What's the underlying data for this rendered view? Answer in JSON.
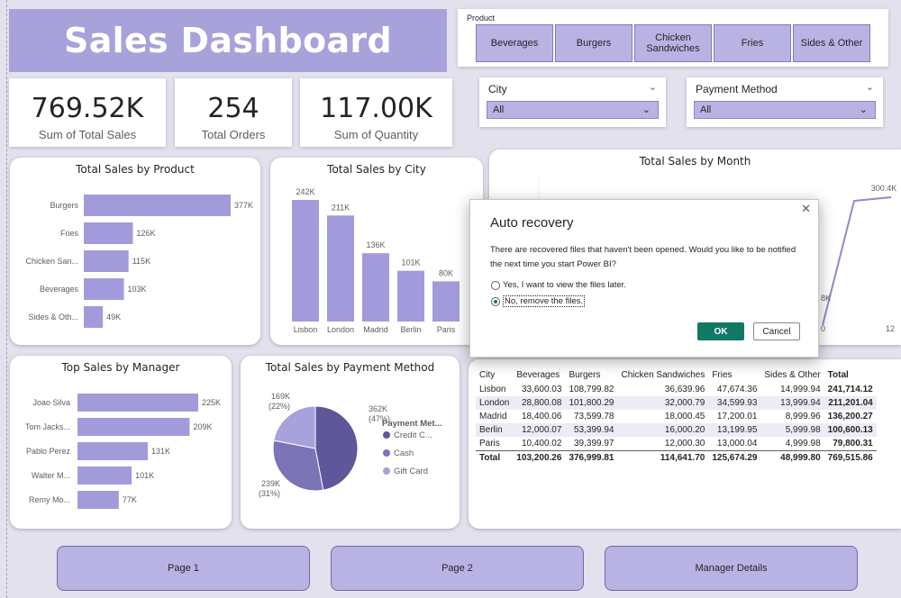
{
  "title": "Sales Dashboard",
  "kpis": [
    {
      "value": "769.52K",
      "label": "Sum of Total Sales"
    },
    {
      "value": "254",
      "label": "Total Orders"
    },
    {
      "value": "117.00K",
      "label": "Sum of Quantity"
    }
  ],
  "product_slicer": {
    "title": "Product",
    "options": [
      "Beverages",
      "Burgers",
      "Chicken Sandwiches",
      "Fries",
      "Sides & Other"
    ]
  },
  "city_slicer": {
    "title": "City",
    "value": "All"
  },
  "payment_slicer": {
    "title": "Payment Method",
    "value": "All"
  },
  "icons": {
    "chevron": "chevron-down-icon",
    "close": "close-icon"
  },
  "colors": {
    "accent": "#a8a2da",
    "bar": "#a29bdb",
    "pie_dark": "#5e5799",
    "pie_mid": "#7b74b6",
    "pie_light": "#a7a1dc",
    "ok": "#117865"
  },
  "product_chart": {
    "title": "Total Sales by Product"
  },
  "city_chart": {
    "title": "Total Sales by City"
  },
  "month_chart": {
    "title": "Total Sales by Month"
  },
  "manager_chart": {
    "title": "Top Sales by Manager"
  },
  "payment_chart": {
    "title": "Total Sales by Payment Method"
  },
  "chart_data": [
    {
      "type": "bar",
      "title": "Total Sales by Product",
      "orientation": "horizontal",
      "categories": [
        "Burgers",
        "Fries",
        "Chicken San...",
        "Beverages",
        "Sides & Oth..."
      ],
      "values": [
        377,
        126,
        115,
        103,
        49
      ],
      "labels": [
        "377K",
        "126K",
        "115K",
        "103K",
        "49K"
      ]
    },
    {
      "type": "bar",
      "title": "Total Sales by City",
      "categories": [
        "Lisbon",
        "London",
        "Madrid",
        "Berlin",
        "Paris"
      ],
      "values": [
        242,
        211,
        136,
        101,
        80
      ],
      "labels": [
        "242K",
        "211K",
        "136K",
        "101K",
        "80K"
      ]
    },
    {
      "type": "line",
      "title": "Total Sales by Month",
      "x_ticks": [
        "0",
        "12"
      ],
      "visible_labels": [
        "300.4K",
        "8K"
      ],
      "note": "partially hidden by dialog"
    },
    {
      "type": "bar",
      "title": "Top Sales by Manager",
      "orientation": "horizontal",
      "categories": [
        "Joao Silva",
        "Tom Jacks...",
        "Pablo Perez",
        "Walter M...",
        "Remy Mo..."
      ],
      "values": [
        225,
        209,
        131,
        101,
        77
      ],
      "labels": [
        "225K",
        "209K",
        "131K",
        "101K",
        "77K"
      ]
    },
    {
      "type": "pie",
      "title": "Total Sales by Payment Method",
      "legend_title": "Payment Met...",
      "legend": "right",
      "slices": [
        {
          "name": "Credit C...",
          "value": 362,
          "label": "362K",
          "pct": "(47%)"
        },
        {
          "name": "Cash",
          "value": 239,
          "label": "239K",
          "pct": "(31%)"
        },
        {
          "name": "Gift Card",
          "value": 169,
          "label": "169K",
          "pct": "(22%)"
        }
      ]
    },
    {
      "type": "table",
      "columns": [
        "City",
        "Beverages",
        "Burgers",
        "Chicken Sandwiches",
        "Fries",
        "Sides & Other",
        "Total"
      ],
      "rows": [
        [
          "Lisbon",
          "33,600.03",
          "108,799.82",
          "36,639.96",
          "47,674.36",
          "14,999.94",
          "241,714.12"
        ],
        [
          "London",
          "28,800.08",
          "101,800.29",
          "32,000.79",
          "34,599.93",
          "13,999.94",
          "211,201.04"
        ],
        [
          "Madrid",
          "18,400.06",
          "73,599.78",
          "18,000.45",
          "17,200.01",
          "8,999.96",
          "136,200.27"
        ],
        [
          "Berlin",
          "12,000.07",
          "53,399.94",
          "16,000.20",
          "13,199.95",
          "5,999.98",
          "100,600.13"
        ],
        [
          "Paris",
          "10,400.02",
          "39,399.97",
          "12,000.30",
          "13,000.04",
          "4,999.98",
          "79,800.31"
        ]
      ],
      "total_row": [
        "Total",
        "103,200.26",
        "376,999.81",
        "114,641.70",
        "125,674.29",
        "48,999.80",
        "769,515.86"
      ]
    }
  ],
  "dialog": {
    "title": "Auto recovery",
    "message": "There are recovered files that haven't been opened. Would you like to be notified the next time you start Power BI?",
    "option_yes": "Yes, I want to view the files later.",
    "option_no": "No, remove the files.",
    "selected": "option_no",
    "ok_label": "OK",
    "cancel_label": "Cancel"
  },
  "nav": [
    "Page 1",
    "Page 2",
    "Manager Details"
  ]
}
